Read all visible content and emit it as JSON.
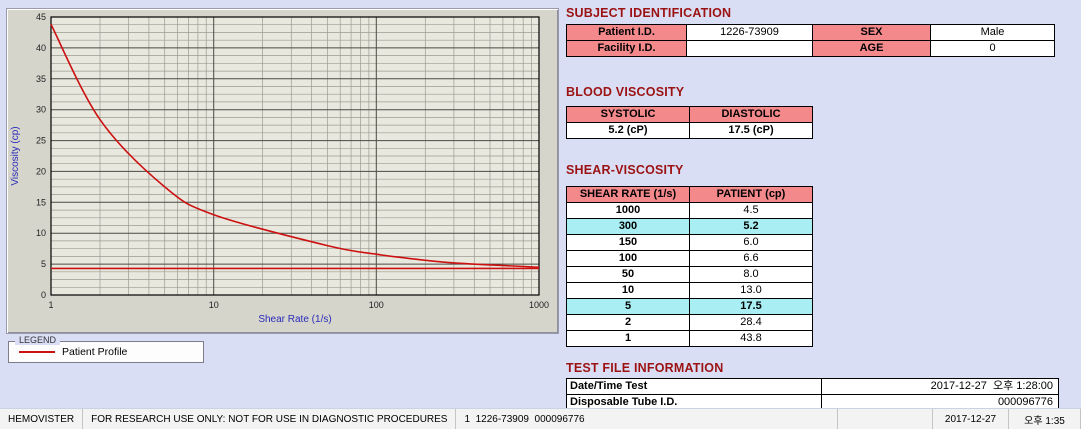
{
  "chart": {
    "x_label": "Shear Rate (1/s)",
    "y_label": "Viscosity (cp)",
    "x_ticks": [
      1,
      10,
      100,
      1000
    ],
    "y_ticks": [
      45,
      40,
      35,
      30,
      25,
      20,
      15,
      10,
      5,
      0
    ],
    "x_range": [
      1,
      1000
    ],
    "y_range": [
      0,
      45
    ],
    "axis_label_color": "#2a2abb",
    "plot_bg": "#e9e8df",
    "minor_grid_color": "#9b9b92",
    "major_grid_color": "#4a4a44"
  },
  "chart_data": {
    "type": "line",
    "title": "",
    "xlabel": "Shear Rate (1/s)",
    "ylabel": "Viscosity (cp)",
    "x_scale": "log",
    "xlim": [
      1,
      1000
    ],
    "ylim": [
      0,
      45
    ],
    "grid": true,
    "legend_position": "outside-bottom-left",
    "series": [
      {
        "name": "Patient Profile",
        "color": "#cc1111",
        "smooth": true,
        "x": [
          1,
          2,
          5,
          10,
          50,
          100,
          150,
          300,
          1000
        ],
        "y": [
          43.8,
          28.4,
          17.5,
          13.0,
          8.0,
          6.6,
          6.0,
          5.2,
          4.5
        ]
      },
      {
        "name": "reference-line",
        "color": "#cc1111",
        "smooth": false,
        "x": [
          1,
          1000
        ],
        "y": [
          4.3,
          4.3
        ]
      }
    ]
  },
  "legend": {
    "title": "LEGEND",
    "items": [
      {
        "label": "Patient Profile",
        "color": "#cc1111"
      }
    ]
  },
  "subject": {
    "heading": "SUBJECT IDENTIFICATION",
    "rows": [
      {
        "label1": "Patient I.D.",
        "value1": "1226-73909",
        "label2": "SEX",
        "value2": "Male"
      },
      {
        "label1": "Facility I.D.",
        "value1": "",
        "label2": "AGE",
        "value2": "0"
      }
    ]
  },
  "blood_viscosity": {
    "heading": "BLOOD VISCOSITY",
    "headers": [
      "SYSTOLIC",
      "DIASTOLIC"
    ],
    "values": [
      "5.2 (cP)",
      "17.5 (cP)"
    ]
  },
  "shear_viscosity": {
    "heading": "SHEAR-VISCOSITY",
    "headers": [
      "SHEAR RATE (1/s)",
      "PATIENT (cp)"
    ],
    "rows": [
      {
        "rate": "1000",
        "value": "4.5",
        "highlight": false
      },
      {
        "rate": "300",
        "value": "5.2",
        "highlight": true
      },
      {
        "rate": "150",
        "value": "6.0",
        "highlight": false
      },
      {
        "rate": "100",
        "value": "6.6",
        "highlight": false
      },
      {
        "rate": "50",
        "value": "8.0",
        "highlight": false
      },
      {
        "rate": "10",
        "value": "13.0",
        "highlight": false
      },
      {
        "rate": "5",
        "value": "17.5",
        "highlight": true
      },
      {
        "rate": "2",
        "value": "28.4",
        "highlight": false
      },
      {
        "rate": "1",
        "value": "43.8",
        "highlight": false
      }
    ]
  },
  "test_file": {
    "heading": "TEST FILE INFORMATION",
    "rows": [
      {
        "label": "Date/Time Test",
        "value": "2017-12-27  오후 1:28:00"
      },
      {
        "label": "Disposable Tube I.D.",
        "value": "000096776"
      }
    ]
  },
  "status_bar": {
    "app_name": "HEMOVISTER",
    "notice": "FOR RESEARCH USE ONLY: NOT FOR USE IN DIAGNOSTIC PROCEDURES",
    "record": "1  1226-73909  000096776",
    "date": "2017-12-27",
    "time": "오후 1:35"
  },
  "colors": {
    "heading": "#9c1212",
    "header_cell": "#f3898b",
    "highlight_cell": "#a9eef2",
    "profile_line": "#cc1111"
  }
}
